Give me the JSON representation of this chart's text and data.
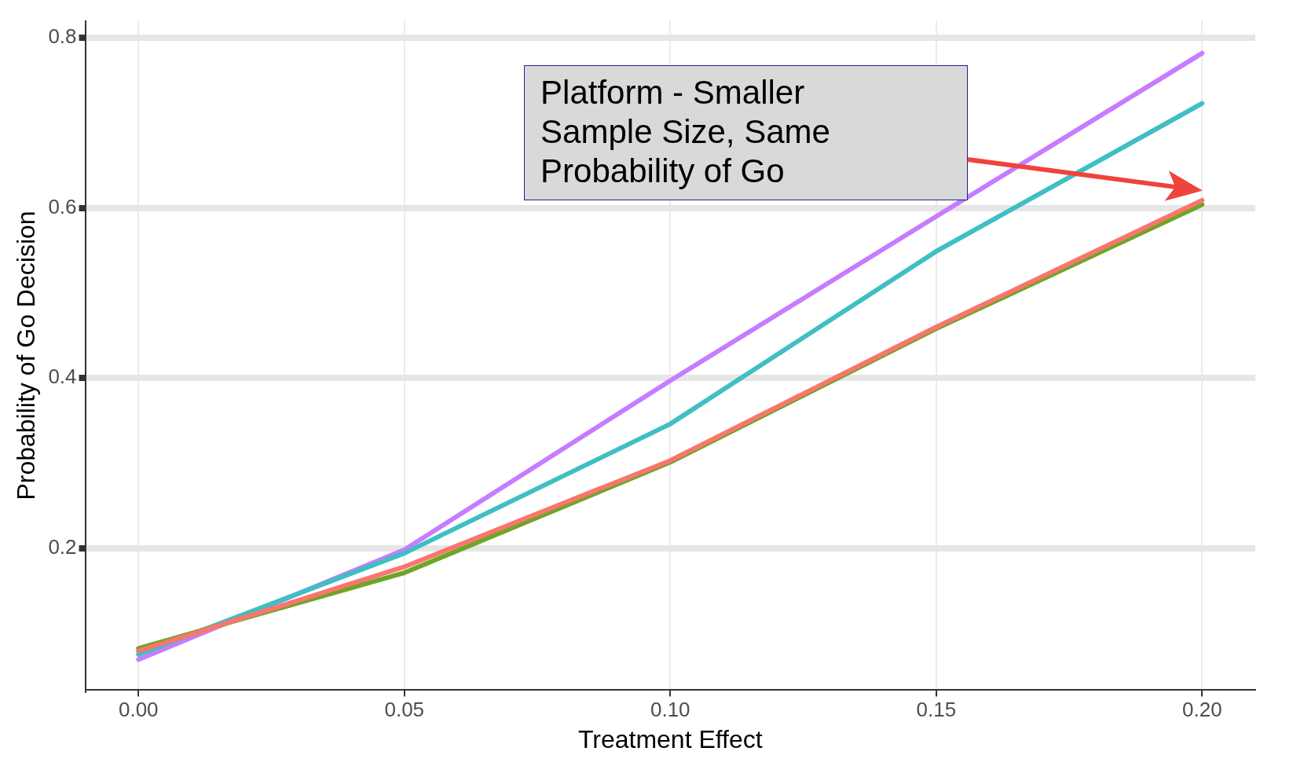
{
  "chart_data": {
    "type": "line",
    "xlabel": "Treatment Effect",
    "ylabel": "Probability of Go Decision",
    "x": [
      0,
      0.05,
      0.1,
      0.15,
      0.2
    ],
    "series": [
      {
        "color": "#f8766d",
        "values": [
          0.079,
          0.178,
          0.303,
          0.46,
          0.609
        ]
      },
      {
        "color": "#6fa527",
        "values": [
          0.082,
          0.171,
          0.301,
          0.458,
          0.604
        ]
      },
      {
        "color": "#3fbfc4",
        "values": [
          0.075,
          0.194,
          0.346,
          0.549,
          0.723
        ]
      },
      {
        "color": "#c77cff",
        "values": [
          0.069,
          0.198,
          0.397,
          0.59,
          0.782
        ]
      }
    ],
    "xlim": [
      -0.01,
      0.21
    ],
    "ylim": [
      0.033,
      0.82
    ],
    "xticks": [
      {
        "value": 0,
        "label": "0.00"
      },
      {
        "value": 0.05,
        "label": "0.05"
      },
      {
        "value": 0.1,
        "label": "0.10"
      },
      {
        "value": 0.15,
        "label": "0.15"
      },
      {
        "value": 0.2,
        "label": "0.20"
      }
    ],
    "yticks": [
      0.2,
      0.4,
      0.6,
      0.8
    ],
    "grid": true,
    "legend": false,
    "marker": "none",
    "line_style": "solid",
    "annotations": [
      "Platform - Smaller Sample Size, Same Probability of Go"
    ]
  }
}
